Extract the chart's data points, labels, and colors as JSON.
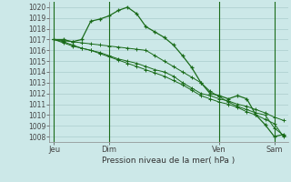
{
  "background_color": "#cce8e8",
  "grid_color": "#aacccc",
  "line_color": "#1a6b1a",
  "title": "Pression niveau de la mer( hPa )",
  "ylim": [
    1007.5,
    1020.5
  ],
  "x_tick_labels": [
    "Jeu",
    "Dim",
    "Ven",
    "Sam"
  ],
  "x_tick_positions": [
    0,
    6,
    18,
    24
  ],
  "vline_positions": [
    0,
    6,
    18,
    24
  ],
  "series1_y": [
    1017.0,
    1017.0,
    1016.8,
    1017.0,
    1018.7,
    1018.9,
    1019.2,
    1019.7,
    1020.0,
    1019.4,
    1018.2,
    1017.7,
    1017.2,
    1016.5,
    1015.5,
    1014.4,
    1013.0,
    1012.0,
    1011.8,
    1011.5,
    1011.8,
    1011.5,
    1010.0,
    1009.1,
    1008.0,
    1008.2
  ],
  "series2_y": [
    1017.0,
    1016.8,
    1016.5,
    1016.2,
    1016.0,
    1015.8,
    1015.5,
    1015.2,
    1015.0,
    1014.8,
    1014.5,
    1014.2,
    1014.0,
    1013.6,
    1013.0,
    1012.5,
    1012.0,
    1011.8,
    1011.5,
    1011.3,
    1011.0,
    1010.8,
    1010.5,
    1010.2,
    1009.8,
    1009.5
  ],
  "series3_y": [
    1017.0,
    1016.7,
    1016.4,
    1016.2,
    1016.0,
    1015.7,
    1015.4,
    1015.1,
    1014.8,
    1014.5,
    1014.2,
    1013.9,
    1013.6,
    1013.2,
    1012.8,
    1012.3,
    1011.8,
    1011.5,
    1011.2,
    1011.0,
    1010.7,
    1010.3,
    1010.0,
    1009.6,
    1009.2,
    1008.0
  ],
  "series4_y": [
    1017.0,
    1016.9,
    1016.8,
    1016.7,
    1016.6,
    1016.5,
    1016.4,
    1016.3,
    1016.2,
    1016.1,
    1016.0,
    1015.5,
    1015.0,
    1014.5,
    1014.0,
    1013.5,
    1013.0,
    1012.2,
    1011.7,
    1011.2,
    1010.8,
    1010.5,
    1010.2,
    1010.0,
    1008.8,
    1008.1
  ],
  "yticks": [
    1008,
    1009,
    1010,
    1011,
    1012,
    1013,
    1014,
    1015,
    1016,
    1017,
    1018,
    1019,
    1020
  ],
  "ylabel_fontsize": 5.5,
  "xlabel_fontsize": 6.5,
  "xtick_fontsize": 6.0,
  "linewidth_main": 0.9,
  "linewidth_minor": 0.7,
  "markersize_main": 3.0,
  "markersize_minor": 2.5
}
